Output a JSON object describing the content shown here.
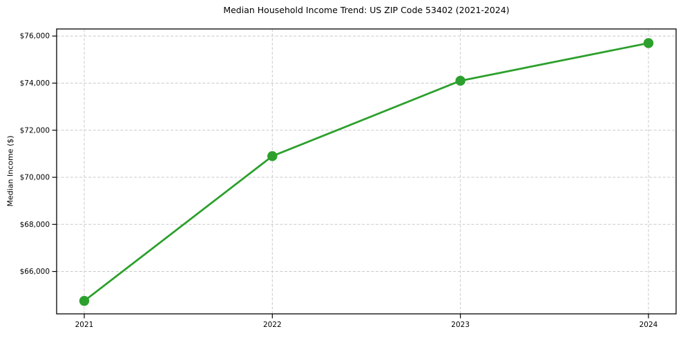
{
  "chart_data": {
    "type": "line",
    "title": "Median Household Income Trend: US ZIP Code 53402 (2021-2024)",
    "xlabel": "",
    "ylabel": "Median Income ($)",
    "x_categories": [
      "2021",
      "2022",
      "2023",
      "2024"
    ],
    "values": [
      64750,
      70900,
      74100,
      75700
    ],
    "ylim": [
      64200,
      76300
    ],
    "yticks": [
      66000,
      68000,
      70000,
      72000,
      74000,
      76000
    ],
    "ytick_labels": [
      "$66,000",
      "$68,000",
      "$70,000",
      "$72,000",
      "$74,000",
      "$76,000"
    ],
    "grid": {
      "visible": true,
      "style": "dashed",
      "color": "#c9c9c9"
    },
    "legend": "none",
    "style": {
      "line_color": "#2ca02c",
      "marker": "circle",
      "marker_color": "#2ca02c",
      "axis_color": "#000000",
      "text_color": "#000000",
      "background_color": "#ffffff"
    }
  }
}
